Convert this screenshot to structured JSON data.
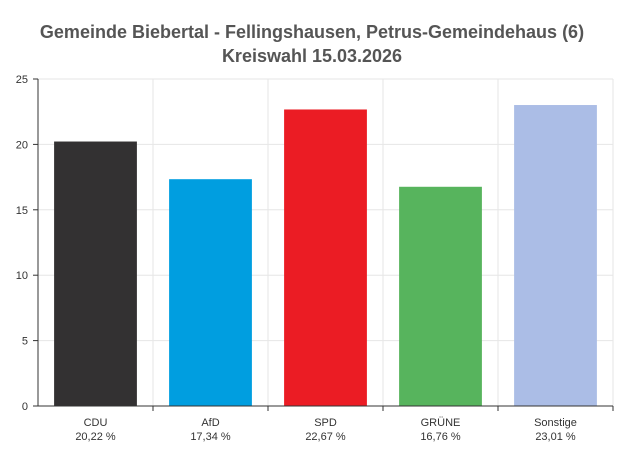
{
  "chart_data": {
    "type": "bar",
    "title": "Gemeinde Biebertal - Fellingshausen, Petrus-Gemeindehaus (6)",
    "subtitle": "Kreiswahl 15.03.2026",
    "categories": [
      "CDU",
      "AfD",
      "SPD",
      "GRÜNE",
      "Sonstige"
    ],
    "values": [
      20.22,
      17.34,
      22.67,
      16.76,
      23.01
    ],
    "value_labels": [
      "20,22 %",
      "17,34 %",
      "22,67 %",
      "16,76 %",
      "23,01 %"
    ],
    "colors": [
      "#333132",
      "#009ee0",
      "#eb1c24",
      "#57b45d",
      "#abbde6"
    ],
    "ylim": [
      0,
      25
    ],
    "yticks": [
      0,
      5,
      10,
      15,
      20,
      25
    ],
    "xlabel": "",
    "ylabel": "",
    "grid": true
  }
}
